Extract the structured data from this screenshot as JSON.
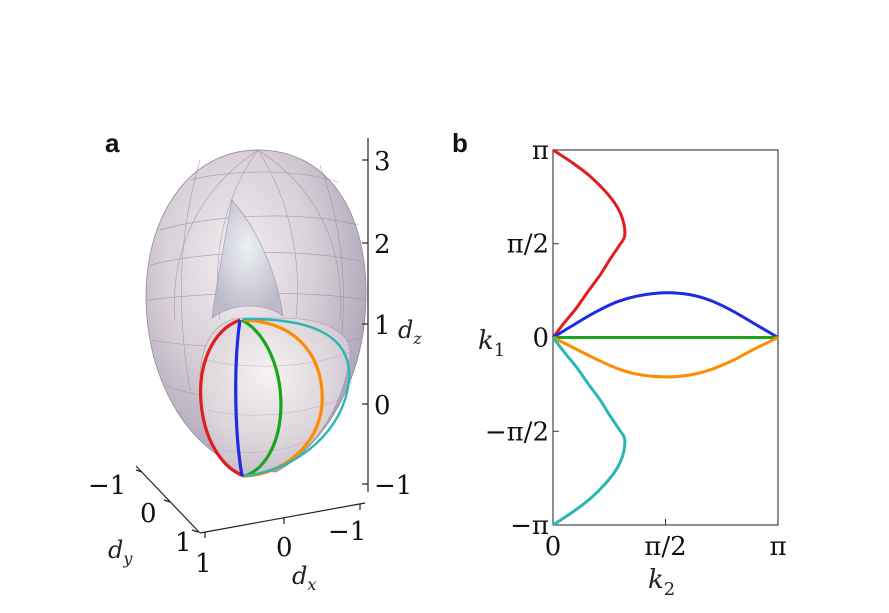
{
  "panels": {
    "a": {
      "label": "a"
    },
    "b": {
      "label": "b"
    }
  },
  "chart_data": [
    {
      "panel": "a",
      "type": "scatter",
      "description_kind": "3d-surface",
      "axes": {
        "dz": {
          "label": "d_z",
          "ticks": [
            "3",
            "2",
            "1",
            "0",
            "−1"
          ],
          "range": [
            -1,
            3
          ]
        },
        "dy": {
          "label": "d_y",
          "ticks": [
            "−1",
            "0",
            "1"
          ],
          "range": [
            -1,
            1
          ]
        },
        "dx": {
          "label": "d_x",
          "ticks": [
            "1",
            "0",
            "−1"
          ],
          "range": [
            -1,
            1
          ]
        }
      },
      "curves": [
        {
          "color": "#e11d1d"
        },
        {
          "color": "#1d2be1"
        },
        {
          "color": "#1aa51a"
        },
        {
          "color": "#ff8c00"
        },
        {
          "color": "#2bb6b6"
        }
      ],
      "surface_color": "#c9c0cf"
    },
    {
      "panel": "b",
      "type": "line",
      "xlabel": "k_2",
      "ylabel": "k_1",
      "xlim": [
        0,
        3.14159
      ],
      "ylim": [
        -3.14159,
        3.14159
      ],
      "xticks": [
        {
          "value": 0,
          "label": "0"
        },
        {
          "value": 1.5708,
          "label": "π/2"
        },
        {
          "value": 3.14159,
          "label": "π"
        }
      ],
      "yticks": [
        {
          "value": 3.14159,
          "label": "π"
        },
        {
          "value": 1.5708,
          "label": "π/2"
        },
        {
          "value": 0,
          "label": "0"
        },
        {
          "value": -1.5708,
          "label": "−π/2"
        },
        {
          "value": -3.14159,
          "label": "−π"
        }
      ],
      "series": [
        {
          "color": "#e11d1d",
          "x": [
            0,
            0.16,
            0.33,
            0.5,
            0.66,
            0.79,
            0.93,
            1.0,
            0.98,
            0.89,
            0.73,
            0.52,
            0.28,
            0.0
          ],
          "y": [
            0,
            0.25,
            0.5,
            0.79,
            1.05,
            1.3,
            1.55,
            1.7,
            1.95,
            2.2,
            2.45,
            2.7,
            2.92,
            3.14159
          ]
        },
        {
          "color": "#1d2be1",
          "x": [
            0,
            0.3,
            0.6,
            0.9,
            1.2,
            1.5708,
            1.9,
            2.2,
            2.5,
            2.8,
            3.14159
          ],
          "y": [
            0,
            0.22,
            0.43,
            0.6,
            0.7,
            0.75,
            0.72,
            0.62,
            0.45,
            0.24,
            0
          ]
        },
        {
          "color": "#1aa51a",
          "x": [
            0,
            3.14159
          ],
          "y": [
            0,
            0
          ]
        },
        {
          "color": "#ff8c00",
          "x": [
            0,
            0.3,
            0.6,
            0.9,
            1.2,
            1.5708,
            1.9,
            2.2,
            2.5,
            2.8,
            3.14159
          ],
          "y": [
            0,
            -0.18,
            -0.36,
            -0.52,
            -0.62,
            -0.66,
            -0.63,
            -0.54,
            -0.39,
            -0.2,
            0
          ]
        },
        {
          "color": "#2bb6b6",
          "x": [
            0,
            0.16,
            0.33,
            0.5,
            0.66,
            0.79,
            0.93,
            1.0,
            0.98,
            0.89,
            0.73,
            0.52,
            0.28,
            0.0
          ],
          "y": [
            0,
            -0.25,
            -0.5,
            -0.79,
            -1.05,
            -1.3,
            -1.55,
            -1.7,
            -1.95,
            -2.2,
            -2.45,
            -2.7,
            -2.92,
            -3.14159
          ]
        }
      ]
    }
  ]
}
